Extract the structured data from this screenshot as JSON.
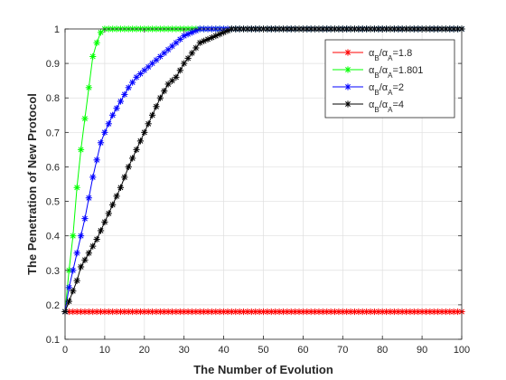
{
  "chart_data": {
    "type": "line",
    "xlabel": "The Number of Evolution",
    "ylabel": "The Penetration of New Protocol",
    "xlim": [
      0,
      100
    ],
    "ylim": [
      0.1,
      1
    ],
    "x_ticks": [
      "0",
      "10",
      "20",
      "30",
      "40",
      "50",
      "60",
      "70",
      "80",
      "90",
      "100"
    ],
    "y_ticks": [
      "0.1",
      "0.2",
      "0.3",
      "0.4",
      "0.5",
      "0.6",
      "0.7",
      "0.8",
      "0.9",
      "1"
    ],
    "grid": true,
    "legend_position": "top-right",
    "marker": "asterisk",
    "series": [
      {
        "name_parts": [
          "α",
          "B",
          "/α",
          "A",
          "=1.8"
        ],
        "color": "#ff0000",
        "x": [
          0,
          100
        ],
        "y": [
          0.18,
          0.18
        ]
      },
      {
        "name_parts": [
          "α",
          "B",
          "/α",
          "A",
          "=1.801"
        ],
        "color": "#00ff00",
        "x": [
          0,
          1,
          2,
          3,
          4,
          5,
          6,
          7,
          8,
          9,
          10,
          11,
          12,
          100
        ],
        "y": [
          0.18,
          0.3,
          0.4,
          0.54,
          0.65,
          0.74,
          0.83,
          0.92,
          0.96,
          0.99,
          1.0,
          1.0,
          1.0,
          1.0
        ]
      },
      {
        "name_parts": [
          "α",
          "B",
          "/α",
          "A",
          "=2"
        ],
        "color": "#0000ff",
        "x": [
          0,
          1,
          2,
          3,
          4,
          5,
          6,
          7,
          8,
          9,
          10,
          12,
          14,
          16,
          18,
          20,
          22,
          24,
          26,
          28,
          30,
          32,
          34,
          36,
          38,
          40,
          100
        ],
        "y": [
          0.18,
          0.25,
          0.3,
          0.35,
          0.4,
          0.45,
          0.51,
          0.57,
          0.62,
          0.67,
          0.7,
          0.75,
          0.79,
          0.83,
          0.86,
          0.88,
          0.9,
          0.92,
          0.94,
          0.96,
          0.98,
          0.99,
          1.0,
          1.0,
          1.0,
          1.0,
          1.0
        ]
      },
      {
        "name_parts": [
          "α",
          "B",
          "/α",
          "A",
          "=4"
        ],
        "color": "#000000",
        "x": [
          0,
          1,
          2,
          3,
          4,
          6,
          8,
          10,
          12,
          14,
          16,
          18,
          20,
          22,
          24,
          26,
          28,
          30,
          32,
          34,
          36,
          38,
          40,
          42,
          44,
          100
        ],
        "y": [
          0.18,
          0.21,
          0.24,
          0.27,
          0.31,
          0.35,
          0.39,
          0.44,
          0.49,
          0.54,
          0.6,
          0.65,
          0.7,
          0.75,
          0.8,
          0.84,
          0.86,
          0.9,
          0.93,
          0.96,
          0.97,
          0.98,
          0.99,
          1.0,
          1.0,
          1.0
        ]
      }
    ]
  }
}
